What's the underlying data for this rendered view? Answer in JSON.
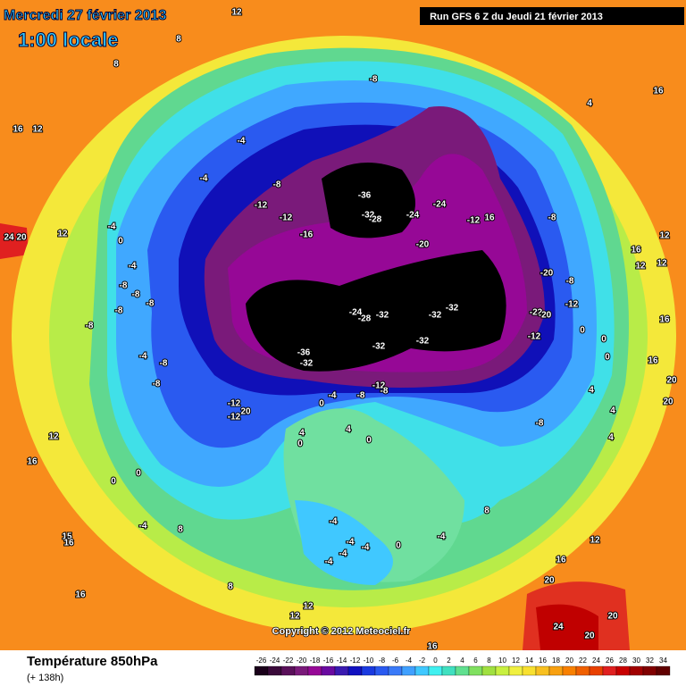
{
  "header": {
    "date": "Mercredi 27 février 2013",
    "time": "1:00 locale",
    "run": "Run GFS 6 Z du Jeudi 21 février 2013"
  },
  "footer": {
    "title": "Température 850hPa",
    "lead": "(+ 138h)",
    "copyright": "Copyright © 2012 Meteociel.fr"
  },
  "colorbar": {
    "values": [
      -26,
      -24,
      -22,
      -20,
      -18,
      -16,
      -14,
      -12,
      -10,
      -8,
      -6,
      -4,
      -2,
      0,
      2,
      4,
      6,
      8,
      10,
      12,
      14,
      16,
      18,
      20,
      22,
      24,
      26,
      28,
      30,
      32,
      34
    ],
    "colors": [
      "#1a001a",
      "#3a0a3a",
      "#5a105a",
      "#7a1a7a",
      "#960896",
      "#6a0aa0",
      "#3a1ab0",
      "#1010c0",
      "#1a3ae0",
      "#2a5af0",
      "#3a7af8",
      "#40a0ff",
      "#40c8ff",
      "#40f0f0",
      "#40e0c0",
      "#60e090",
      "#80e060",
      "#a0e040",
      "#c8f040",
      "#f0f040",
      "#f8e030",
      "#f8c020",
      "#f8a010",
      "#f88000",
      "#f06000",
      "#e84000",
      "#e02020",
      "#c80000",
      "#a00000",
      "#800000",
      "#600000"
    ]
  },
  "map": {
    "labels": [
      12,
      8,
      8,
      16,
      12,
      24,
      20,
      12,
      -8,
      -4,
      -4,
      -8,
      -12,
      -12,
      -16,
      -36,
      -32,
      -28,
      -24,
      -24,
      -20,
      -12,
      16,
      -8,
      -20,
      -8,
      -12,
      -24,
      -28,
      -32,
      -32,
      -32,
      -32,
      -32,
      -36,
      -32,
      -22,
      -20,
      -12,
      -12,
      -12,
      20,
      -4,
      -8,
      -12,
      -8,
      0,
      4,
      0,
      4,
      0,
      -8,
      -8,
      -8,
      -8,
      -8,
      -8,
      -4,
      -4,
      -8,
      -8,
      -4,
      0,
      12,
      16,
      0,
      0,
      -4,
      8,
      15,
      16,
      16,
      8,
      -4,
      -4,
      -4,
      -4,
      -4,
      0,
      -4,
      8,
      12,
      16,
      20,
      24,
      20,
      20,
      16,
      4,
      16,
      12,
      12,
      12,
      16,
      16,
      20,
      20,
      0,
      0,
      0,
      4,
      4,
      4,
      12,
      12,
      16
    ]
  }
}
